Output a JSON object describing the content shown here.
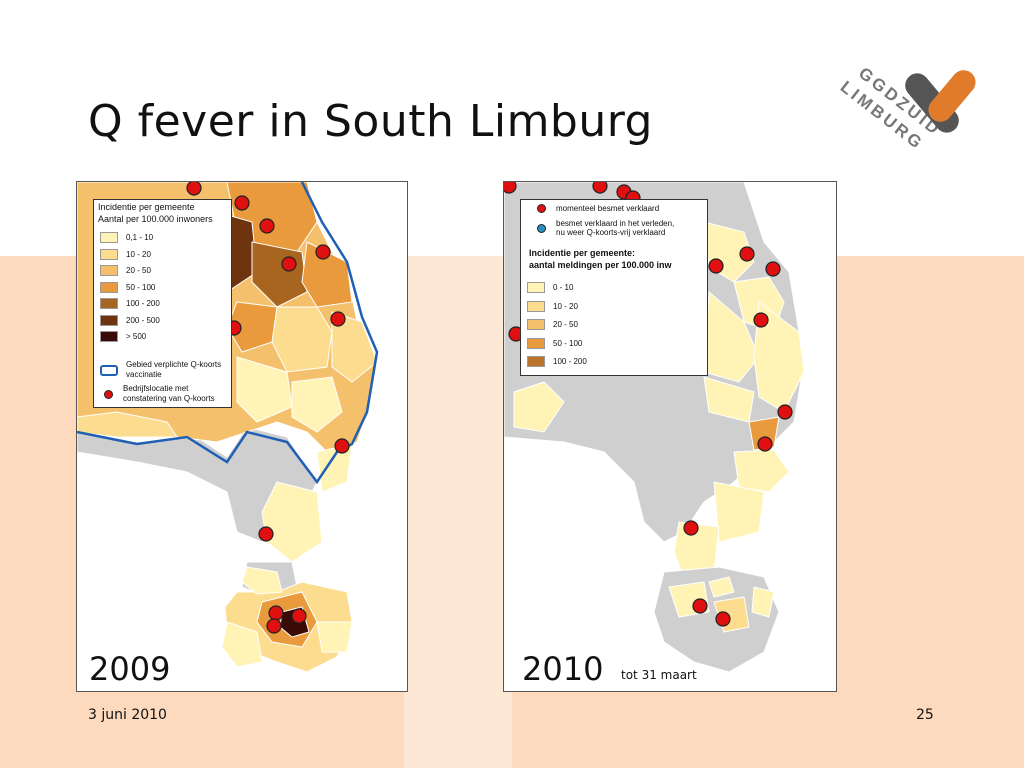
{
  "slide": {
    "title": "Q fever in South Limburg",
    "date": "3 juni 2010",
    "page_number": "25"
  },
  "logo": {
    "text_top": "GGDZUID",
    "text_bottom": "LIMBURG",
    "colors": {
      "orange": "#e07b2b",
      "gray": "#555555"
    }
  },
  "map_2009": {
    "year": "2009",
    "legend": {
      "title_line1": "Incidentie per gemeente",
      "title_line2": "Aantal per 100.000 inwoners",
      "classes": [
        {
          "label": "0,1 - 10",
          "color": "#fff3b5"
        },
        {
          "label": "10 - 20",
          "color": "#fcdc8e"
        },
        {
          "label": "20 - 50",
          "color": "#f5c06c"
        },
        {
          "label": "50 - 100",
          "color": "#e89a3c"
        },
        {
          "label": "100 - 200",
          "color": "#a8651f"
        },
        {
          "label": "200 - 500",
          "color": "#6e3410"
        },
        {
          "label": "> 500",
          "color": "#3a0a06"
        }
      ],
      "vaccination_area": "Gebied verplichte Q-koorts vaccinatie",
      "vaccination_color": "#1f5fb4",
      "farm_location": "Bedrijfslocatie met constatering van Q-koorts",
      "farm_color": "#e01010"
    }
  },
  "map_2010": {
    "year": "2010",
    "period": "tot 31 maart",
    "legend": {
      "currently_infected": "momenteel besmet verklaard",
      "currently_color": "#e01010",
      "previously_infected_line1": "besmet verklaard in het verleden,",
      "previously_infected_line2": "nu weer Q-koorts-vrij verklaard",
      "previously_color": "#2a8fc0",
      "title_line1": "Incidentie per gemeente:",
      "title_line2": "aantal meldingen per 100.000 inw",
      "classes": [
        {
          "label": "0 - 10",
          "color": "#fff3b5"
        },
        {
          "label": "10 - 20",
          "color": "#fcdc8e"
        },
        {
          "label": "20 - 50",
          "color": "#f5c06c"
        },
        {
          "label": "50 - 100",
          "color": "#e89a3c"
        },
        {
          "label": "100 - 200",
          "color": "#b9732a"
        }
      ]
    }
  }
}
